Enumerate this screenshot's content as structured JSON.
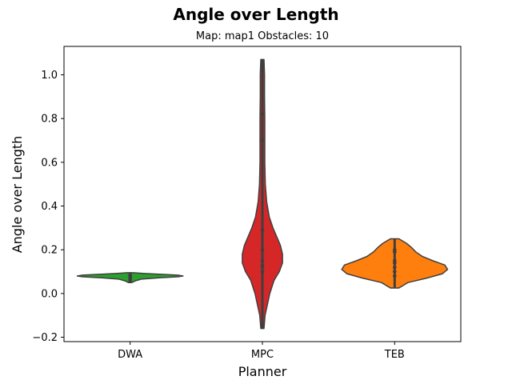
{
  "chart_data": {
    "type": "violin",
    "title": "Angle over Length",
    "subtitle": "Map: map1 Obstacles: 10",
    "xlabel": "Planner",
    "ylabel": "Angle over Length",
    "categories": [
      "DWA",
      "MPC",
      "TEB"
    ],
    "ylim": [
      -0.22,
      1.13
    ],
    "yticks": [
      -0.2,
      0.0,
      0.2,
      0.4,
      0.6,
      0.8,
      1.0
    ],
    "ytick_labels": [
      "−0.2",
      "0.0",
      "0.2",
      "0.4",
      "0.6",
      "0.8",
      "1.0"
    ],
    "grid": false,
    "series": [
      {
        "category": "DWA",
        "color": "#2ca02c",
        "range": [
          0.05,
          0.095
        ],
        "density": [
          [
            0.05,
            0.03
          ],
          [
            0.058,
            0.1
          ],
          [
            0.066,
            0.22
          ],
          [
            0.072,
            0.55
          ],
          [
            0.077,
            0.92
          ],
          [
            0.08,
            1.0
          ],
          [
            0.084,
            0.9
          ],
          [
            0.088,
            0.55
          ],
          [
            0.092,
            0.25
          ],
          [
            0.095,
            0.05
          ]
        ],
        "points": [
          0.06,
          0.067,
          0.075,
          0.08,
          0.085
        ]
      },
      {
        "category": "MPC",
        "color": "#d62728",
        "range": [
          -0.16,
          1.07
        ],
        "density": [
          [
            -0.16,
            0.03
          ],
          [
            -0.1,
            0.05
          ],
          [
            0.0,
            0.14
          ],
          [
            0.06,
            0.22
          ],
          [
            0.1,
            0.32
          ],
          [
            0.14,
            0.38
          ],
          [
            0.18,
            0.38
          ],
          [
            0.22,
            0.34
          ],
          [
            0.26,
            0.27
          ],
          [
            0.3,
            0.2
          ],
          [
            0.35,
            0.13
          ],
          [
            0.42,
            0.08
          ],
          [
            0.5,
            0.055
          ],
          [
            0.6,
            0.045
          ],
          [
            0.7,
            0.045
          ],
          [
            0.8,
            0.045
          ],
          [
            0.9,
            0.04
          ],
          [
            1.0,
            0.04
          ],
          [
            1.07,
            0.03
          ]
        ],
        "points": [
          0.1,
          0.12,
          0.13,
          0.15,
          0.2,
          0.29,
          0.7,
          0.82
        ]
      },
      {
        "category": "TEB",
        "color": "#ff7f0e",
        "range": [
          0.025,
          0.25
        ],
        "density": [
          [
            0.025,
            0.08
          ],
          [
            0.05,
            0.25
          ],
          [
            0.07,
            0.6
          ],
          [
            0.09,
            0.9
          ],
          [
            0.11,
            1.0
          ],
          [
            0.13,
            0.95
          ],
          [
            0.15,
            0.72
          ],
          [
            0.17,
            0.52
          ],
          [
            0.19,
            0.4
          ],
          [
            0.21,
            0.32
          ],
          [
            0.23,
            0.22
          ],
          [
            0.25,
            0.08
          ]
        ],
        "points": [
          0.08,
          0.1,
          0.12,
          0.14,
          0.15,
          0.19,
          0.2
        ]
      }
    ]
  }
}
